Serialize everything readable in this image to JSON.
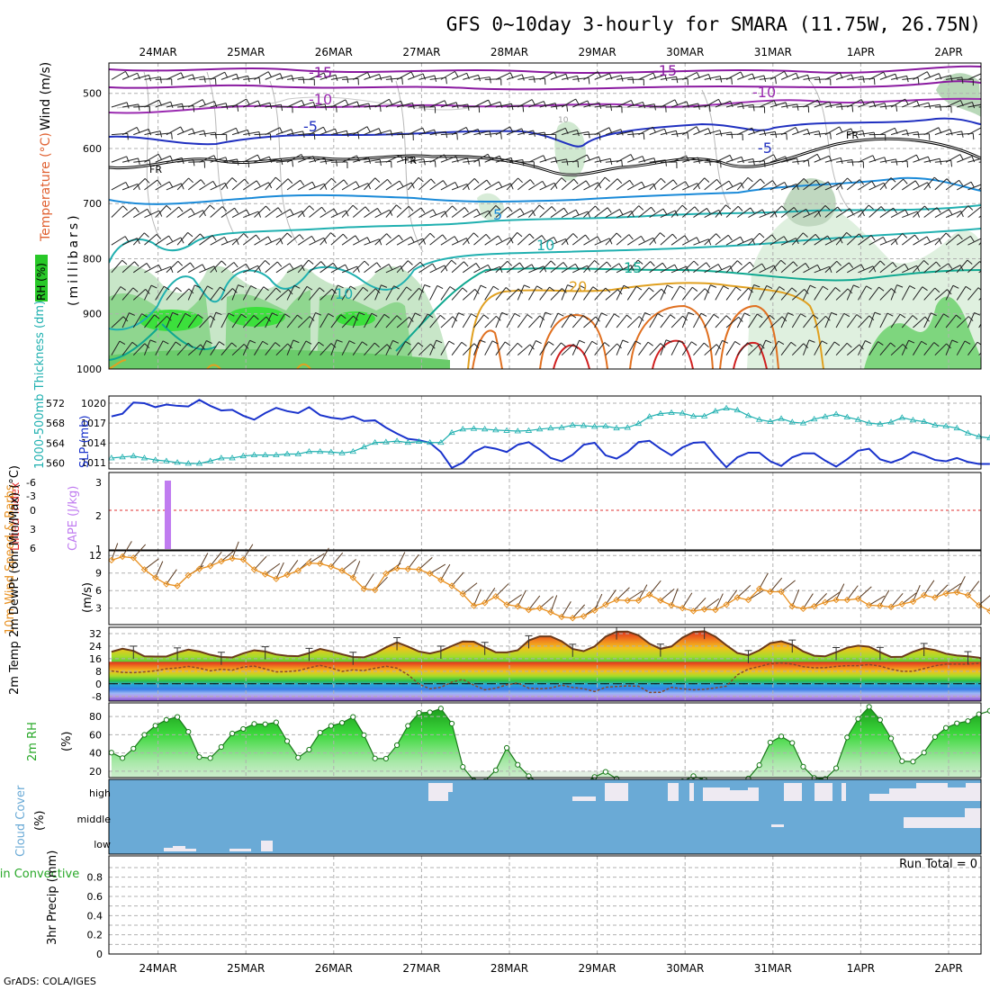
{
  "title": "GFS 0~10day 3-hourly for SMARA (11.75W, 26.75N)",
  "footer": "GrADS: COLA/IGES",
  "dates": [
    "24MAR",
    "25MAR",
    "26MAR",
    "27MAR",
    "28MAR",
    "29MAR",
    "30MAR",
    "31MAR",
    "1APR",
    "2APR"
  ],
  "colors": {
    "slp": "#1a33cc",
    "thickness": "#20b0b0",
    "cape": "#c07cf0",
    "lifted_index": "#e03030",
    "wind10m": "#e89020",
    "barb": "#5a3a20",
    "rh_green": "#28c828",
    "cloud": "#6aaad6",
    "cloud_clear": "#eeeaf2",
    "dewpt": "#8a4a2a",
    "grid": "#b0b0b0"
  },
  "chart_data": [
    {
      "panel": "upper-air",
      "type": "heatmap",
      "labels": {
        "rh": "RH (%)",
        "temp": "Temperature (°C)",
        "wind": "Wind (m/s)",
        "pressure": "(millibars)"
      },
      "yticks": [
        500,
        600,
        700,
        800,
        900,
        1000
      ],
      "ylim": [
        1000,
        450
      ],
      "freezing_label": "FR",
      "isotherm_labels": [
        {
          "text": "-15"
        },
        {
          "text": "-15"
        },
        {
          "text": "-10"
        },
        {
          "text": "-10"
        },
        {
          "text": "-5"
        },
        {
          "text": "-5"
        },
        {
          "text": "5"
        },
        {
          "text": "10"
        },
        {
          "text": "10"
        },
        {
          "text": "15"
        },
        {
          "text": "20"
        },
        {
          "text": "10"
        }
      ]
    },
    {
      "panel": "slp-thickness",
      "type": "line",
      "labels": {
        "left": "1000-500mb Thickness (dm)",
        "right": "SLP (mb)"
      },
      "left_ticks": [
        560,
        564,
        568,
        572
      ],
      "right_ticks": [
        1011,
        1014,
        1017,
        1020
      ],
      "series": [
        {
          "name": "SLP",
          "axis": "right",
          "values": [
            1018.0,
            1018.4,
            1020.1,
            1020.0,
            1019.4,
            1019.8,
            1019.6,
            1019.5,
            1020.5,
            1019.6,
            1018.9,
            1019.0,
            1018.1,
            1017.5,
            1018.5,
            1019.3,
            1018.8,
            1018.5,
            1019.4,
            1018.2,
            1017.8,
            1017.6,
            1018.0,
            1017.3,
            1017.4,
            1016.3,
            1015.4,
            1014.6,
            1014.4,
            1014.0,
            1012.6,
            1010.2,
            1011.0,
            1012.6,
            1013.4,
            1013.1,
            1012.6,
            1013.7,
            1014.1,
            1013.0,
            1011.7,
            1011.2,
            1012.2,
            1013.7,
            1014.0,
            1012.1,
            1011.6,
            1012.6,
            1014.1,
            1014.3,
            1013.1,
            1012.1,
            1013.3,
            1014.0,
            1014.1,
            1012.1,
            1010.3,
            1011.8,
            1012.5,
            1012.5,
            1011.2,
            1010.5,
            1011.8,
            1012.4,
            1012.4,
            1011.3,
            1010.4,
            1011.5,
            1012.8,
            1013.1,
            1011.5,
            1011.0,
            1011.6,
            1012.6,
            1012.1,
            1011.4,
            1011.2,
            1011.7,
            1011.1,
            1010.8,
            1010.8
          ]
        },
        {
          "name": "1000-500mb Thickness",
          "axis": "left",
          "values": [
            561.0,
            561.2,
            561.4,
            561.0,
            560.6,
            560.4,
            560.1,
            559.9,
            559.9,
            560.4,
            561.0,
            561.0,
            561.4,
            561.6,
            561.6,
            561.6,
            561.8,
            561.8,
            562.3,
            562.3,
            562.2,
            562.0,
            562.3,
            563.2,
            564.1,
            564.2,
            564.4,
            564.1,
            564.3,
            564.1,
            564.1,
            566.1,
            566.8,
            566.9,
            566.8,
            566.6,
            566.5,
            566.4,
            566.5,
            566.8,
            567.0,
            567.1,
            567.6,
            567.5,
            567.3,
            567.4,
            567.0,
            567.1,
            567.9,
            569.3,
            569.9,
            570.1,
            570.0,
            569.4,
            569.4,
            570.4,
            571.0,
            570.6,
            569.5,
            568.7,
            568.3,
            568.9,
            568.2,
            568.0,
            568.8,
            569.3,
            569.8,
            569.2,
            568.7,
            568.0,
            567.8,
            568.2,
            569.1,
            568.6,
            568.3,
            567.6,
            567.4,
            567.0,
            566.0,
            565.3,
            565.0
          ]
        }
      ]
    },
    {
      "panel": "li-cape",
      "type": "bar",
      "labels": {
        "left": "Lifted Index",
        "right": "CAPE (J/kg)"
      },
      "left_ticks": [
        "-6",
        "-3",
        "0",
        "3",
        "6"
      ],
      "right_ticks": [
        "1",
        "2",
        "3"
      ],
      "lifted_index": 0,
      "cape_bar_day": 0.15,
      "cape_bar_value": 3
    },
    {
      "panel": "wind10m",
      "type": "line",
      "labels": {
        "left": "10m Wind Speed & Barbs",
        "unit": "(m/s)"
      },
      "yticks": [
        3,
        6,
        9,
        12
      ],
      "series": [
        {
          "name": "10m Wind Speed",
          "values": [
            11.2,
            11.8,
            11.6,
            9.6,
            8.2,
            7.1,
            6.8,
            8.6,
            9.7,
            10.2,
            11.0,
            11.5,
            11.3,
            9.6,
            8.8,
            8.0,
            8.7,
            9.4,
            10.7,
            10.6,
            10.1,
            9.4,
            8.2,
            6.3,
            6.1,
            8.9,
            9.8,
            9.7,
            9.6,
            8.9,
            7.8,
            6.8,
            5.4,
            3.4,
            3.9,
            5.0,
            3.6,
            3.3,
            2.7,
            3.0,
            2.3,
            1.5,
            1.3,
            1.6,
            2.6,
            3.6,
            4.4,
            4.3,
            4.3,
            5.3,
            4.3,
            3.5,
            3.0,
            2.5,
            2.8,
            2.7,
            3.6,
            4.8,
            4.4,
            6.3,
            5.8,
            5.8,
            3.3,
            2.9,
            3.3,
            4.0,
            4.4,
            4.4,
            4.6,
            3.5,
            3.4,
            3.2,
            3.7,
            4.1,
            5.2,
            4.8,
            5.5,
            5.7,
            5.2,
            3.5,
            2.5
          ]
        }
      ]
    },
    {
      "panel": "temperature",
      "type": "area",
      "labels": {
        "left": "2m Temp 2m DewPt (6hr Min/Max) (°C)"
      },
      "yticks": [
        -8,
        0,
        8,
        16,
        24,
        32
      ],
      "series": [
        {
          "name": "2m Temp",
          "values": [
            20.4,
            22.4,
            21.0,
            17.5,
            17.4,
            17.4,
            19.9,
            21.8,
            20.6,
            18.5,
            17.1,
            16.8,
            19.4,
            21.4,
            20.6,
            18.7,
            17.8,
            17.6,
            19.6,
            22.2,
            20.7,
            18.8,
            17.1,
            16.9,
            19.4,
            23.2,
            26.4,
            23.7,
            20.6,
            19.3,
            21.0,
            24.1,
            27.0,
            26.8,
            23.4,
            20.1,
            20.0,
            21.4,
            27.6,
            30.2,
            30.2,
            27.1,
            22.2,
            20.8,
            23.8,
            30.1,
            33.2,
            33.3,
            30.9,
            25.6,
            22.3,
            23.8,
            29.4,
            33.0,
            33.5,
            30.1,
            24.6,
            19.6,
            18.2,
            21.3,
            25.9,
            27.1,
            24.9,
            20.6,
            17.9,
            17.5,
            20.1,
            23.0,
            24.3,
            23.6,
            20.2,
            17.1,
            17.2,
            20.4,
            22.7,
            21.5,
            19.2,
            18.0,
            17.5,
            16.7,
            14.1
          ]
        },
        {
          "name": "2m DewPt",
          "values": [
            8.2,
            7.3,
            7.1,
            7.6,
            8.3,
            9.6,
            10.1,
            11.1,
            10.0,
            8.3,
            9.3,
            8.7,
            10.7,
            11.3,
            9.5,
            7.6,
            7.8,
            8.4,
            10.2,
            11.8,
            10.1,
            7.9,
            8.9,
            8.5,
            9.9,
            11.2,
            10.0,
            5.8,
            -0.1,
            -3.2,
            -2.2,
            1.1,
            2.8,
            -0.8,
            -3.8,
            -2.8,
            -0.6,
            0.6,
            -2.8,
            -3.2,
            -2.7,
            -0.8,
            -2.3,
            -3.1,
            -4.9,
            -2.2,
            -1.7,
            -1.3,
            -1.5,
            -5.5,
            -5.4,
            -2.2,
            -3.2,
            -3.8,
            -3.5,
            -2.6,
            -1.5,
            5.7,
            9.4,
            11.0,
            12.9,
            13.3,
            12.6,
            10.9,
            10.2,
            10.3,
            11.1,
            11.6,
            11.6,
            12.3,
            11.3,
            9.3,
            8.0,
            8.0,
            9.7,
            11.5,
            12.6,
            12.6,
            12.5,
            13.1,
            13.3
          ]
        }
      ]
    },
    {
      "panel": "rh2m",
      "type": "area",
      "labels": {
        "left": "2m RH",
        "unit": "(%)"
      },
      "yticks": [
        20,
        40,
        60,
        80
      ],
      "series": [
        {
          "name": "2m RH",
          "values": [
            40.4,
            34.4,
            44.8,
            59.9,
            70.0,
            76.4,
            79.6,
            63.3,
            35.5,
            34.4,
            46.6,
            61.4,
            66.4,
            71.9,
            71.6,
            73.6,
            53.0,
            35.0,
            43.7,
            62.4,
            69.8,
            73.1,
            79.6,
            59.6,
            34.0,
            33.8,
            48.6,
            69.8,
            84.0,
            84.7,
            88.8,
            72.3,
            24.7,
            9.8,
            9.0,
            21.1,
            45.6,
            27.1,
            14.6,
            6.6,
            6.8,
            7.2,
            6.1,
            6.5,
            13.7,
            19.3,
            11.8,
            7.4,
            6.3,
            5.8,
            5.2,
            6.3,
            8.9,
            14.6,
            10.8,
            6.6,
            5.6,
            5.8,
            12.0,
            26.7,
            51.6,
            58.2,
            51.0,
            25.0,
            12.7,
            11.5,
            23.3,
            57.1,
            77.5,
            90.7,
            76.3,
            56.0,
            31.0,
            30.5,
            40.4,
            57.6,
            67.6,
            72.6,
            75.0,
            82.5,
            86.3
          ]
        }
      ]
    },
    {
      "panel": "cloud",
      "type": "area",
      "labels": {
        "left": "Cloud Cover",
        "unit": "(%)"
      },
      "yticks": [
        "high",
        "middle",
        "low"
      ]
    },
    {
      "panel": "precip",
      "type": "bar",
      "labels": {
        "left": "Total / Rain Convective",
        "right": "3hr Precip (mm)"
      },
      "yticks": [
        "0",
        "0.2",
        "0.4",
        "0.6",
        "0.8"
      ],
      "run_total": "Run Total = 0",
      "values": []
    }
  ]
}
